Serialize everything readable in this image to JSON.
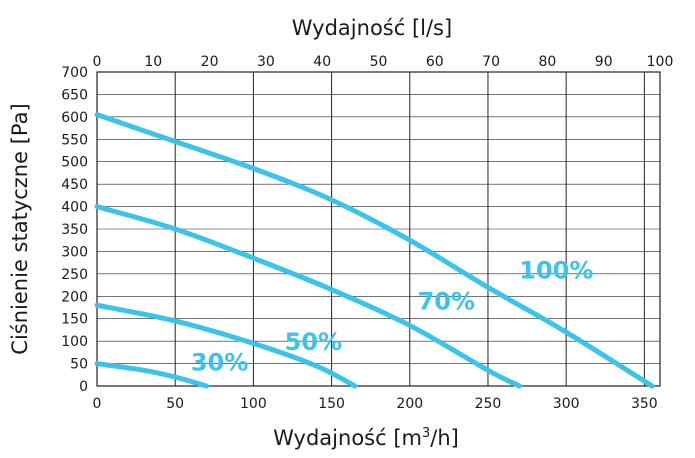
{
  "chart_data": {
    "type": "line",
    "xlabel_top": "Wydajność [l/s]",
    "xlabel_bottom_main": "Wydajność [m",
    "xlabel_bottom_sup": "3",
    "xlabel_bottom_end": "/h]",
    "ylabel": "Ciśnienie statyczne [Pa]",
    "xlim_bottom": [
      0,
      360
    ],
    "xlim_top": [
      0,
      100
    ],
    "ylim": [
      0,
      700
    ],
    "grid": true,
    "color": "#3cc3ea",
    "x_ticks_bottom": [
      0,
      50,
      100,
      150,
      200,
      250,
      300,
      350
    ],
    "x_ticks_top": [
      0,
      10,
      20,
      30,
      40,
      50,
      60,
      70,
      80,
      90,
      100
    ],
    "y_ticks": [
      0,
      50,
      100,
      150,
      200,
      250,
      300,
      350,
      400,
      450,
      500,
      550,
      600,
      650,
      700
    ],
    "series": [
      {
        "name": "100%",
        "x": [
          0,
          50,
          100,
          150,
          200,
          250,
          300,
          355
        ],
        "y": [
          605,
          545,
          485,
          415,
          325,
          220,
          120,
          0
        ]
      },
      {
        "name": "70%",
        "x": [
          0,
          50,
          100,
          150,
          200,
          250,
          270
        ],
        "y": [
          400,
          350,
          285,
          215,
          135,
          35,
          0
        ]
      },
      {
        "name": "50%",
        "x": [
          0,
          50,
          100,
          140,
          165
        ],
        "y": [
          180,
          145,
          95,
          45,
          0
        ]
      },
      {
        "name": "30%",
        "x": [
          0,
          30,
          50,
          70
        ],
        "y": [
          50,
          35,
          20,
          0
        ]
      }
    ],
    "labels": [
      {
        "text": "100%",
        "x": 270,
        "y": 240
      },
      {
        "text": "70%",
        "x": 205,
        "y": 170
      },
      {
        "text": "50%",
        "x": 120,
        "y": 80
      },
      {
        "text": "30%",
        "x": 60,
        "y": 35
      }
    ]
  }
}
